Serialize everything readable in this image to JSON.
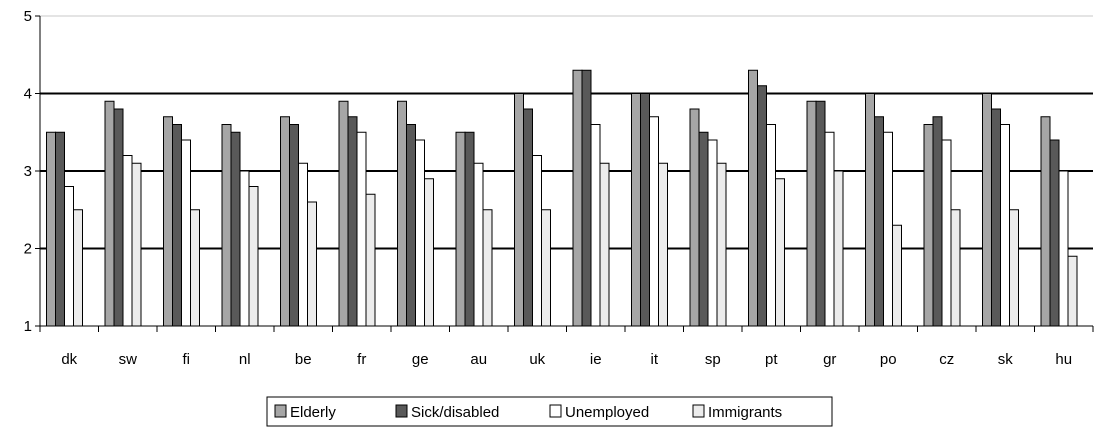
{
  "chart_data": {
    "type": "bar",
    "categories": [
      "dk",
      "sw",
      "fi",
      "nl",
      "be",
      "fr",
      "ge",
      "au",
      "uk",
      "ie",
      "it",
      "sp",
      "pt",
      "gr",
      "po",
      "cz",
      "sk",
      "hu"
    ],
    "series": [
      {
        "name": "Elderly",
        "color": "#a6a6a6",
        "values": [
          3.5,
          3.9,
          3.7,
          3.6,
          3.7,
          3.9,
          3.9,
          3.5,
          4.0,
          4.3,
          4.0,
          3.8,
          4.3,
          3.9,
          4.0,
          3.6,
          4.0,
          3.7
        ]
      },
      {
        "name": "Sick/disabled",
        "color": "#595959",
        "values": [
          3.5,
          3.8,
          3.6,
          3.5,
          3.6,
          3.7,
          3.6,
          3.5,
          3.8,
          4.3,
          4.0,
          3.5,
          4.1,
          3.9,
          3.7,
          3.7,
          3.8,
          3.4
        ]
      },
      {
        "name": "Unemployed",
        "color": "#ffffff",
        "values": [
          2.8,
          3.2,
          3.4,
          3.0,
          3.1,
          3.5,
          3.4,
          3.1,
          3.2,
          3.6,
          3.7,
          3.4,
          3.6,
          3.5,
          3.5,
          3.4,
          3.6,
          3.0
        ]
      },
      {
        "name": "Immigrants",
        "color": "#ececec",
        "values": [
          2.5,
          3.1,
          2.5,
          2.8,
          2.6,
          2.7,
          2.9,
          2.5,
          2.5,
          3.1,
          3.1,
          3.1,
          2.9,
          3.0,
          2.3,
          2.5,
          2.5,
          1.9
        ]
      }
    ],
    "ylim": [
      1,
      5
    ],
    "yticks": [
      1,
      2,
      3,
      4,
      5
    ],
    "grid": true,
    "legend": "bottom",
    "title": "",
    "xlabel": "",
    "ylabel": ""
  }
}
